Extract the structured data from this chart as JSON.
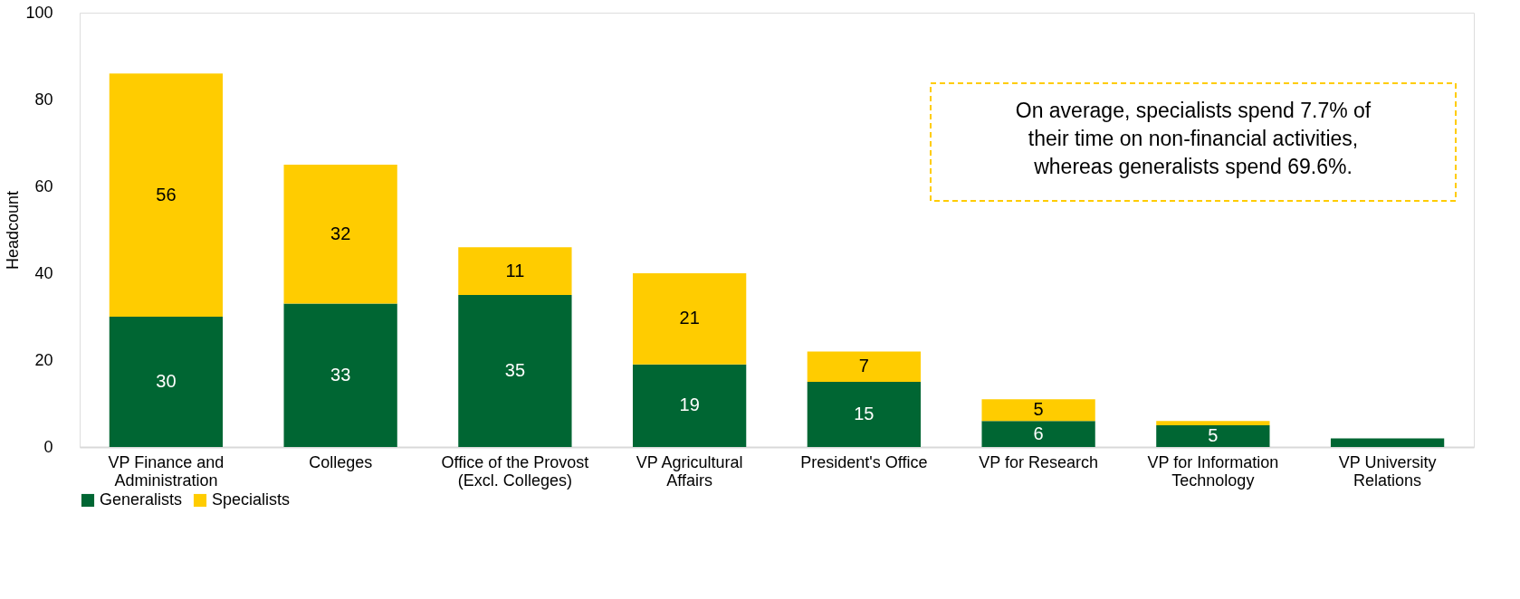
{
  "chart_data": {
    "type": "bar",
    "stacked": true,
    "ylabel": "Headcount",
    "categories": [
      "VP Finance and Administration",
      "Colleges",
      "Office of the Provost (Excl. Colleges)",
      "VP Agricultural Affairs",
      "President's Office",
      "VP for Research",
      "VP for Information Technology",
      "VP University Relations"
    ],
    "series": [
      {
        "name": "Generalists",
        "color": "#006633",
        "values": [
          30,
          33,
          35,
          19,
          15,
          6,
          5,
          2
        ],
        "value_labels": [
          "30",
          "33",
          "35",
          "19",
          "15",
          "6",
          "5",
          null
        ]
      },
      {
        "name": "Specialists",
        "color": "#ffcc00",
        "values": [
          56,
          32,
          11,
          21,
          7,
          5,
          1,
          0
        ],
        "value_labels": [
          "56",
          "32",
          "11",
          "21",
          "7",
          "5",
          null,
          null
        ]
      }
    ],
    "ylim": [
      0,
      100
    ],
    "yticks": [
      0,
      20,
      40,
      60,
      80,
      100
    ],
    "grid": false,
    "legend": "bottom",
    "annotations": [
      "On average, specialists spend 7.7% of\ntheir time on non-financial activities,\nwhereas generalists spend 69.6%."
    ]
  }
}
